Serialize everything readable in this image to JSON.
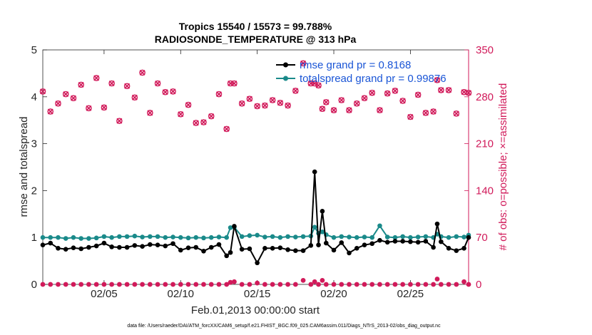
{
  "chart_data": {
    "type": "line",
    "title": "Tropics 15540 / 15573 = 99.788%",
    "subtitle": "RADIOSONDE_TEMPERATURE @ 313 hPa",
    "xlabel": "Feb.01,2013 00:00:00 start",
    "ylabel_left": "rmse and totalspread",
    "ylabel_right": "# of obs: o=possible; ×=assimilated",
    "footnote": "data file: /Users/raeder/DAI/ATM_forcXX/CAM6_setup/f.e21.FHIST_BGC.f09_025.CAM6assim.011/Diags_NTrS_2013-02/obs_diag_output.nc",
    "xlim": [
      1,
      28.8
    ],
    "ylim_left": [
      0,
      5
    ],
    "ylim_right": [
      0,
      350
    ],
    "x_ticks": [
      5,
      10,
      15,
      20,
      25
    ],
    "x_tick_labels": [
      "02/05",
      "02/10",
      "02/15",
      "02/20",
      "02/25"
    ],
    "y_left_ticks": [
      "0",
      "1",
      "2",
      "3",
      "4",
      "5"
    ],
    "y_right_ticks": [
      "0",
      "70",
      "140",
      "210",
      "280",
      "350"
    ],
    "colors": {
      "rmse": "#000000",
      "spread": "#1a8a8a",
      "obs": "#d11a5a",
      "legend_text": "#1a55d6"
    },
    "legend": [
      {
        "label": "rmse grand pr = 0.8168",
        "series": "rmse"
      },
      {
        "label": "totalspread grand pr = 0.99876",
        "series": "spread"
      }
    ],
    "x": [
      1.0,
      1.5,
      2.0,
      2.5,
      3.0,
      3.5,
      4.0,
      4.5,
      5.0,
      5.5,
      6.0,
      6.5,
      7.0,
      7.5,
      8.0,
      8.5,
      9.0,
      9.5,
      10.0,
      10.5,
      11.0,
      11.5,
      12.0,
      12.5,
      13.0,
      13.25,
      13.5,
      14.0,
      14.5,
      15.0,
      15.5,
      16.0,
      16.5,
      17.0,
      17.5,
      18.0,
      18.5,
      18.75,
      19.0,
      19.25,
      19.5,
      20.0,
      20.5,
      21.0,
      21.5,
      22.0,
      22.5,
      23.0,
      23.5,
      24.0,
      24.5,
      25.0,
      25.5,
      26.0,
      26.5,
      26.75,
      27.0,
      27.5,
      28.0,
      28.5,
      28.8
    ],
    "series": [
      {
        "name": "rmse",
        "values": [
          0.84,
          0.88,
          0.77,
          0.75,
          0.78,
          0.76,
          0.79,
          0.82,
          0.88,
          0.8,
          0.79,
          0.79,
          0.83,
          0.81,
          0.85,
          0.84,
          0.82,
          0.87,
          0.73,
          0.78,
          0.79,
          0.71,
          0.79,
          0.85,
          0.61,
          0.68,
          1.24,
          0.75,
          0.76,
          0.46,
          0.77,
          0.77,
          0.78,
          0.74,
          0.72,
          0.72,
          0.83,
          2.4,
          0.84,
          1.56,
          0.88,
          0.73,
          0.89,
          0.67,
          0.77,
          0.84,
          0.87,
          0.94,
          0.9,
          0.92,
          0.92,
          0.91,
          0.9,
          0.92,
          0.79,
          1.29,
          0.91,
          0.77,
          0.72,
          0.77,
          1.0
        ]
      },
      {
        "name": "totalspread",
        "values": [
          1.0,
          1.0,
          1.0,
          0.98,
          1.0,
          0.98,
          0.98,
          0.99,
          1.02,
          1.0,
          1.02,
          1.02,
          1.03,
          1.01,
          1.02,
          1.02,
          1.0,
          1.01,
          1.0,
          0.99,
          1.0,
          0.99,
          1.0,
          1.01,
          1.0,
          1.21,
          1.22,
          1.02,
          1.04,
          1.05,
          1.01,
          1.02,
          1.0,
          1.02,
          1.01,
          1.02,
          1.03,
          1.22,
          1.09,
          1.12,
          1.06,
          1.0,
          1.02,
          1.01,
          1.0,
          1.01,
          1.0,
          1.25,
          1.01,
          1.0,
          1.02,
          1.0,
          1.01,
          1.02,
          1.0,
          1.07,
          1.02,
          1.0,
          1.02,
          1.01,
          1.05
        ]
      },
      {
        "name": "obs_possible",
        "values": [
          288,
          258,
          270,
          284,
          278,
          298,
          263,
          308,
          264,
          300,
          244,
          296,
          279,
          316,
          256,
          300,
          287,
          288,
          254,
          268,
          241,
          242,
          251,
          284,
          232,
          300,
          300,
          270,
          277,
          266,
          267,
          275,
          271,
          267,
          289,
          330,
          300,
          300,
          297,
          262,
          272,
          260,
          275,
          260,
          270,
          278,
          286,
          260,
          285,
          289,
          274,
          250,
          283,
          256,
          258,
          305,
          290,
          290,
          255,
          287,
          286
        ]
      },
      {
        "name": "obs_assimilated",
        "values": [
          288,
          258,
          270,
          284,
          278,
          298,
          263,
          308,
          264,
          300,
          244,
          296,
          279,
          316,
          256,
          300,
          287,
          288,
          254,
          268,
          241,
          242,
          251,
          284,
          232,
          300,
          300,
          270,
          277,
          266,
          267,
          275,
          271,
          267,
          289,
          330,
          300,
          300,
          297,
          262,
          272,
          260,
          275,
          260,
          270,
          278,
          286,
          260,
          285,
          289,
          274,
          250,
          283,
          256,
          258,
          305,
          290,
          290,
          255,
          287,
          286
        ]
      },
      {
        "name": "obs_rejected",
        "values": [
          0,
          0,
          0,
          0,
          0,
          0,
          0,
          0,
          0,
          0,
          0,
          0,
          0,
          0,
          0,
          0,
          0,
          0,
          0,
          0,
          0,
          0,
          0,
          0,
          0,
          3,
          4,
          0,
          0,
          2,
          0,
          0,
          0,
          0,
          0,
          6,
          0,
          4,
          0,
          6,
          0,
          0,
          0,
          0,
          0,
          0,
          0,
          0,
          0,
          0,
          0,
          0,
          0,
          0,
          0,
          8,
          0,
          0,
          0,
          4,
          0
        ]
      }
    ]
  }
}
